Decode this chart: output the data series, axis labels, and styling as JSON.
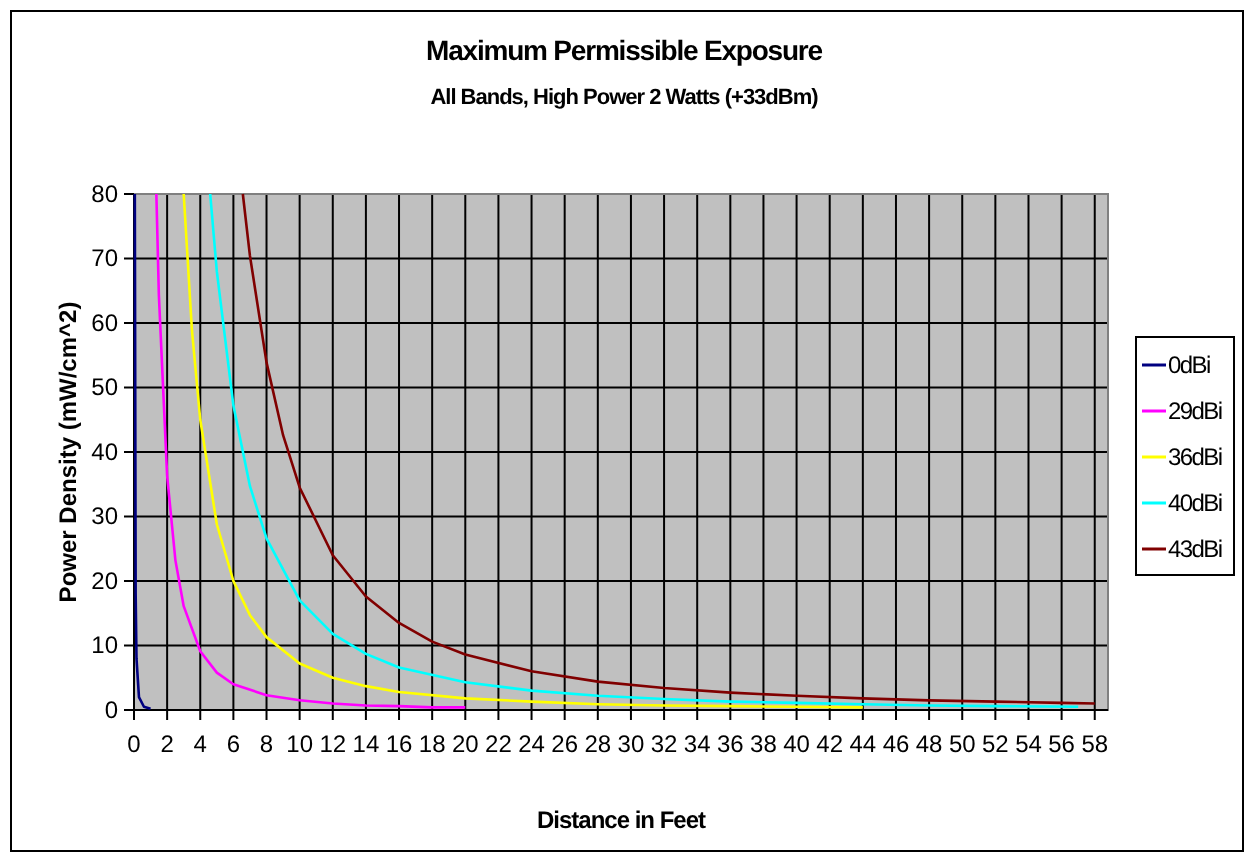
{
  "chart_data": {
    "type": "line",
    "title": "Maximum Permissible Exposure",
    "subtitle": "All Bands, High Power 2 Watts (+33dBm)",
    "xlabel": "Distance in Feet",
    "ylabel": "Power Density (mW/cm^2)",
    "xlim": [
      0,
      58.8
    ],
    "xticks": [
      0,
      2,
      4,
      6,
      8,
      10,
      12,
      14,
      16,
      18,
      20,
      22,
      24,
      26,
      28,
      30,
      32,
      34,
      36,
      38,
      40,
      42,
      44,
      46,
      48,
      50,
      52,
      54,
      56,
      58
    ],
    "ylim": [
      0,
      80
    ],
    "yticks": [
      0,
      10,
      20,
      30,
      40,
      50,
      60,
      70,
      80
    ],
    "grid": true,
    "legend": "right",
    "marker": "none",
    "line_style": "solid",
    "series": [
      {
        "name": "0dBi",
        "color": "#000080",
        "x": [
          0.05,
          0.1,
          0.15,
          0.3,
          0.6,
          1
        ],
        "values": [
          80,
          18,
          8,
          2,
          0.5,
          0.2
        ]
      },
      {
        "name": "29dBi",
        "color": "#ff00ff",
        "x": [
          1.35,
          1.5,
          2,
          2.5,
          3,
          4,
          5,
          6,
          8,
          10,
          12,
          14,
          16,
          18,
          20
        ],
        "values": [
          80,
          64.4,
          36.3,
          23.2,
          16.1,
          9.1,
          5.8,
          4,
          2.3,
          1.5,
          1,
          0.7,
          0.6,
          0.4,
          0.4
        ]
      },
      {
        "name": "36dBi",
        "color": "#ffff00",
        "x": [
          3,
          3.5,
          4,
          5,
          6,
          7,
          8,
          10,
          12,
          14,
          16,
          20,
          24,
          28,
          32,
          36,
          40,
          44
        ],
        "values": [
          80,
          58.8,
          45,
          28.8,
          20,
          14.7,
          11.3,
          7.2,
          5,
          3.7,
          2.8,
          1.8,
          1.3,
          0.9,
          0.7,
          0.6,
          0.5,
          0.4
        ]
      },
      {
        "name": "40dBi",
        "color": "#00ffff",
        "x": [
          4.6,
          5,
          6,
          7,
          8,
          10,
          12,
          14,
          16,
          20,
          24,
          28,
          32,
          36,
          40,
          44,
          48,
          52,
          57
        ],
        "values": [
          80,
          68,
          47.2,
          34.7,
          26.6,
          17,
          11.8,
          8.7,
          6.6,
          4.3,
          3,
          2.2,
          1.7,
          1.3,
          1.1,
          0.9,
          0.7,
          0.6,
          0.5
        ]
      },
      {
        "name": "43dBi",
        "color": "#800000",
        "x": [
          6.57,
          7,
          8,
          9,
          10,
          12,
          14,
          16,
          18,
          20,
          24,
          28,
          32,
          36,
          40,
          44,
          48,
          52,
          56,
          58
        ],
        "values": [
          80,
          70.4,
          53.9,
          42.6,
          34.5,
          24,
          17.6,
          13.5,
          10.6,
          8.6,
          6,
          4.4,
          3.4,
          2.7,
          2.2,
          1.8,
          1.5,
          1.3,
          1.1,
          1
        ]
      }
    ]
  }
}
